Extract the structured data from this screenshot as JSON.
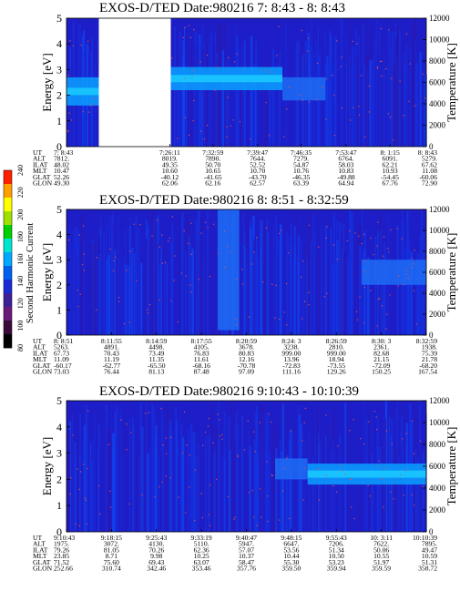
{
  "figure": {
    "colorbar": {
      "label": "Second Harmonic Current",
      "ticks": [
        "80",
        "100",
        "120",
        "140",
        "160",
        "180",
        "200",
        "220",
        "240"
      ],
      "colors": [
        "#000000",
        "#3a0a3a",
        "#6a1a7a",
        "#3d1f9a",
        "#1a2bd6",
        "#0060f0",
        "#00a8ff",
        "#00e5d0",
        "#00d000",
        "#a0e000",
        "#ffff00",
        "#ffa000",
        "#ff2000"
      ]
    },
    "background_color": "#1e1ec8",
    "gap_color": "#ffffff",
    "dot_color": "#e05050"
  },
  "chart_data": [
    {
      "type": "heatmap",
      "title": "EXOS-D/TED   Date:980216  7: 8:43 - 8: 8:43",
      "ylabel": "Energy [eV]",
      "y2label": "Temperature [K]",
      "ylim": [
        0,
        5
      ],
      "y2lim": [
        0,
        12000
      ],
      "yticks": [
        "0",
        "1",
        "2",
        "3",
        "4",
        "5"
      ],
      "y2ticks": [
        "0",
        "2000",
        "4000",
        "6000",
        "8000",
        "10000",
        "12000"
      ],
      "data_gap": [
        0.09,
        0.29
      ],
      "bands": [
        {
          "x": [
            0.0,
            0.09
          ],
          "y": [
            1.6,
            2.7
          ],
          "level": "high"
        },
        {
          "x": [
            0.29,
            0.6
          ],
          "y": [
            2.2,
            3.1
          ],
          "level": "high"
        },
        {
          "x": [
            0.6,
            0.72
          ],
          "y": [
            1.8,
            2.7
          ],
          "level": "mid"
        }
      ],
      "table": {
        "labels": [
          "UT",
          "ALT",
          "ILAT",
          "MLT",
          "GLAT",
          "GLON"
        ],
        "columns": [
          [
            "7: 8:43",
            "7812.",
            "48.02",
            "10.47",
            "52.26",
            "49.30"
          ],
          [
            "7:26:11",
            "8019.",
            "49.35",
            "10.60",
            "-40.12",
            "62.06"
          ],
          [
            "7:32:59",
            "7890.",
            "50.70",
            "10.65",
            "-41.65",
            "62.16"
          ],
          [
            "7:39:47",
            "7644.",
            "52.52",
            "10.70",
            "-43.70",
            "62.57"
          ],
          [
            "7:46:35",
            "7279.",
            "54.87",
            "10.76",
            "-46.35",
            "63.39"
          ],
          [
            "7:53:47",
            "6764.",
            "58.03",
            "10.83",
            "-49.88",
            "64.94"
          ],
          [
            "8: 1:15",
            "6091.",
            "62.21",
            "10.93",
            "-54.45",
            "67.76"
          ],
          [
            "8: 8:43",
            "5279.",
            "67.62",
            "11.08",
            "-60.06",
            "72.90"
          ]
        ]
      }
    },
    {
      "type": "heatmap",
      "title": "EXOS-D/TED   Date:980216  8: 8:51 - 8:32:59",
      "ylabel": "Energy [eV]",
      "y2label": "Temperature [K]",
      "ylim": [
        0,
        5
      ],
      "y2lim": [
        0,
        12000
      ],
      "yticks": [
        "0",
        "1",
        "2",
        "3",
        "4",
        "5"
      ],
      "y2ticks": [
        "0",
        "2000",
        "4000",
        "6000",
        "8000",
        "10000",
        "12000"
      ],
      "bands": [
        {
          "x": [
            0.42,
            0.48
          ],
          "y": [
            0.2,
            5.0
          ],
          "level": "mid"
        },
        {
          "x": [
            0.82,
            1.0
          ],
          "y": [
            2.0,
            3.0
          ],
          "level": "mid"
        }
      ],
      "table": {
        "labels": [
          "UT",
          "ALT",
          "ILAT",
          "MLT",
          "GLAT",
          "GLON"
        ],
        "columns": [
          [
            "8: 8:51",
            "5263.",
            "67.73",
            "11.09",
            "-60.17",
            "73.03"
          ],
          [
            "8:11:55",
            "4891.",
            "70.43",
            "11.19",
            "-62.77",
            "76.44"
          ],
          [
            "8:14:59",
            "4498.",
            "73.49",
            "11.35",
            "-65.50",
            "81.13"
          ],
          [
            "8:17:55",
            "4105.",
            "76.83",
            "11.61",
            "-68.16",
            "87.48"
          ],
          [
            "8:20:59",
            "3678.",
            "80.83",
            "12.16",
            "-70.78",
            "97.09"
          ],
          [
            "8:24: 3",
            "3238.",
            "999.00",
            "13.96",
            "-72.83",
            "111.16"
          ],
          [
            "8:26:59",
            "2810.",
            "999.00",
            "18.94",
            "-73.55",
            "129.26"
          ],
          [
            "8:30: 3",
            "2361.",
            "82.68",
            "21.15",
            "-72.09",
            "150.25"
          ],
          [
            "8:32:59",
            "1938.",
            "75.39",
            "21.78",
            "-68.20",
            "167.54"
          ]
        ]
      }
    },
    {
      "type": "heatmap",
      "title": "EXOS-D/TED   Date:980216  9:10:43 - 10:10:39",
      "ylabel": "Energy [eV]",
      "y2label": "Temperature [K]",
      "ylim": [
        0,
        5
      ],
      "y2lim": [
        0,
        12000
      ],
      "yticks": [
        "0",
        "1",
        "2",
        "3",
        "4",
        "5"
      ],
      "y2ticks": [
        "0",
        "2000",
        "4000",
        "6000",
        "8000",
        "10000",
        "12000"
      ],
      "bands": [
        {
          "x": [
            0.58,
            0.67
          ],
          "y": [
            2.0,
            2.8
          ],
          "level": "mid"
        },
        {
          "x": [
            0.67,
            1.0
          ],
          "y": [
            1.8,
            2.6
          ],
          "level": "high"
        }
      ],
      "table": {
        "labels": [
          "UT",
          "ALT",
          "ILAT",
          "MLT",
          "GLAT",
          "GLON"
        ],
        "columns": [
          [
            "9:10:43",
            "1975.",
            "79.26",
            "23.85",
            "71.52",
            "252.66"
          ],
          [
            "9:18:15",
            "3072.",
            "81.05",
            "8.71",
            "75.60",
            "310.74"
          ],
          [
            "9:25:43",
            "4130.",
            "70.26",
            "9.98",
            "69.43",
            "342.46"
          ],
          [
            "9:33:19",
            "5110.",
            "62.36",
            "10.25",
            "63.07",
            "353.46"
          ],
          [
            "9:40:47",
            "5947.",
            "57.07",
            "10.37",
            "58.47",
            "357.76"
          ],
          [
            "9:48:15",
            "6647.",
            "53.56",
            "10.44",
            "55.30",
            "359.50"
          ],
          [
            "9:55:43",
            "7206.",
            "51.34",
            "10.50",
            "53.23",
            "359.94"
          ],
          [
            "10: 3:11",
            "7622.",
            "50.06",
            "10.55",
            "51.97",
            "359.59"
          ],
          [
            "10:10:39",
            "7895.",
            "49.47",
            "10.59",
            "51.31",
            "358.72"
          ]
        ]
      }
    }
  ]
}
